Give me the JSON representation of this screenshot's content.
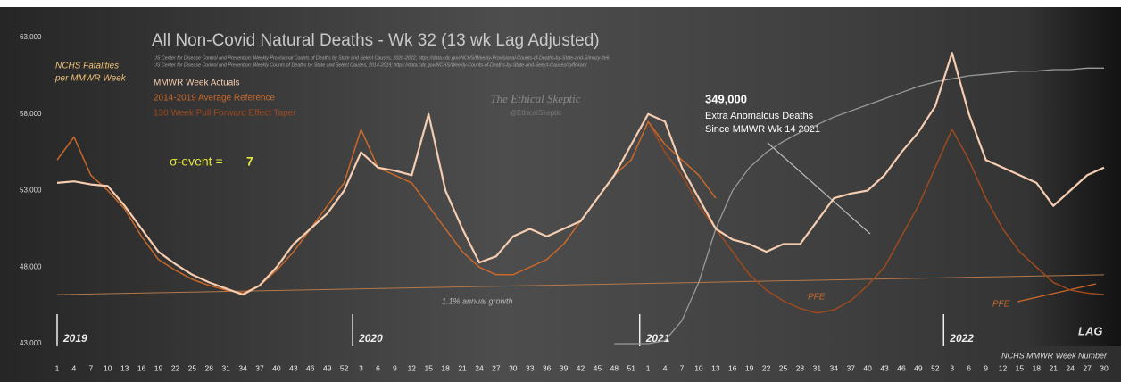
{
  "chart_data": {
    "type": "line",
    "title": "All Non-Covid Natural Deaths - Wk 32 (13 wk Lag Adjusted)",
    "sources": [
      "US Center for Disease Control and Prevention: Weekly Provisional Counts of Deaths by State and Select Causes, 2020-2022; https://data.cdc.gov/NCHS/Weekly-Provisional-Counts-of-Deaths-by-State-and-S/muzy-jte6",
      "US Center for Disease Control and Prevention: Weekly Counts of Deaths by State and Select Causes, 2014-2019; https://data.cdc.gov/NCHS/Weekly-Counts-of-Deaths-by-State-and-Select-Causes/3yf8-kanr"
    ],
    "y_label": [
      "NCHS Fatalities",
      "per MMWR Week"
    ],
    "x_label": "NCHS MMWR Week Number",
    "watermark": [
      "The Ethical Skeptic",
      "@EthicalSkeptic"
    ],
    "sigma_event": {
      "label": "σ-event =",
      "value": "7"
    },
    "annotation": [
      "349,000",
      "Extra Anomalous Deaths",
      "Since MMWR Wk 14 2021"
    ],
    "pfe_labels": [
      "PFE",
      "PFE"
    ],
    "lag_label": "LAG",
    "years": [
      "2019",
      "2020",
      "2021",
      "2022"
    ],
    "trend": {
      "label": "1.1% annual growth",
      "start": 46200,
      "end": 47500,
      "color": "#b5774a"
    },
    "categories": [
      1,
      4,
      7,
      10,
      13,
      16,
      19,
      22,
      25,
      28,
      31,
      34,
      37,
      40,
      43,
      46,
      49,
      52,
      3,
      6,
      9,
      12,
      15,
      18,
      21,
      24,
      27,
      30,
      33,
      36,
      39,
      42,
      45,
      48,
      51,
      1,
      4,
      7,
      10,
      13,
      16,
      19,
      22,
      25,
      28,
      31,
      34,
      37,
      40,
      43,
      46,
      49,
      52,
      3,
      6,
      9,
      12,
      15,
      18,
      21,
      24,
      27,
      30
    ],
    "ylim": [
      43000,
      63000
    ],
    "yticks": [
      {
        "value": 43000,
        "label": "43,000"
      },
      {
        "value": 48000,
        "label": "48,000"
      },
      {
        "value": 53000,
        "label": "53,000"
      },
      {
        "value": 58000,
        "label": "58,000"
      },
      {
        "value": 63000,
        "label": "63,000"
      }
    ],
    "series": [
      {
        "name": "MMWR Week Actuals",
        "color": "#f6cdb0",
        "width": 2.2,
        "values": [
          53500,
          53600,
          53400,
          53300,
          52000,
          50500,
          49000,
          48200,
          47500,
          47000,
          46600,
          46200,
          46800,
          48000,
          49500,
          50500,
          51500,
          53000,
          55500,
          54500,
          54300,
          54000,
          58000,
          53000,
          50500,
          48300,
          48700,
          50000,
          50500,
          50000,
          50500,
          51000,
          52500,
          54000,
          56000,
          58000,
          57500,
          54500,
          52500,
          50500,
          49800,
          49500,
          49000,
          49500,
          49500,
          51000,
          52500,
          52800,
          53000,
          54000,
          55500,
          56800,
          58500,
          62000,
          58000,
          55000,
          54500,
          54000,
          53500,
          52000,
          53000,
          54000,
          54500
        ]
      },
      {
        "name": "2014-2019 Average Reference",
        "color": "#c8682a",
        "width": 1.5,
        "values": [
          55000,
          56500,
          54000,
          53000,
          51800,
          50000,
          48500,
          47800,
          47200,
          46800,
          46500,
          46300,
          46800,
          47800,
          49000,
          50500,
          52000,
          53500,
          57000,
          54500,
          54000,
          53500,
          52000,
          50500,
          49000,
          48000,
          47500,
          47500,
          48000,
          48500,
          49500,
          51000,
          52500,
          54000,
          55000,
          57500,
          56000,
          55000,
          54000,
          52500,
          null,
          null,
          null,
          null,
          null,
          null,
          null,
          null,
          null,
          null,
          null,
          null,
          null,
          null,
          null,
          null,
          null,
          null,
          null,
          null,
          null,
          null,
          null
        ]
      },
      {
        "name": "130 Week Pull Forward Effect Taper",
        "color": "#9e4a1e",
        "width": 1.5,
        "values": [
          null,
          null,
          null,
          null,
          null,
          null,
          null,
          null,
          null,
          null,
          null,
          null,
          null,
          null,
          null,
          null,
          null,
          null,
          null,
          null,
          null,
          null,
          null,
          null,
          null,
          null,
          null,
          null,
          null,
          null,
          null,
          null,
          null,
          null,
          null,
          57500,
          55500,
          54000,
          52000,
          50500,
          49000,
          47500,
          46500,
          45800,
          45300,
          45000,
          45200,
          45800,
          46800,
          48000,
          50000,
          52000,
          54500,
          57000,
          55000,
          52500,
          50500,
          49000,
          48000,
          47000,
          46500,
          46300,
          46200
        ]
      },
      {
        "color": "#9a9a9a",
        "width": 1.3,
        "values": [
          null,
          null,
          null,
          null,
          null,
          null,
          null,
          null,
          null,
          null,
          null,
          null,
          null,
          null,
          null,
          null,
          null,
          null,
          null,
          null,
          null,
          null,
          null,
          null,
          null,
          null,
          null,
          null,
          null,
          null,
          null,
          null,
          null,
          43000,
          43000,
          43000,
          43200,
          44500,
          47000,
          50500,
          53000,
          54500,
          55500,
          56200,
          56800,
          57300,
          57800,
          58200,
          58600,
          59000,
          59400,
          59800,
          60100,
          60300,
          60500,
          60600,
          60700,
          60800,
          60800,
          60900,
          60900,
          61000,
          61000
        ]
      }
    ]
  }
}
